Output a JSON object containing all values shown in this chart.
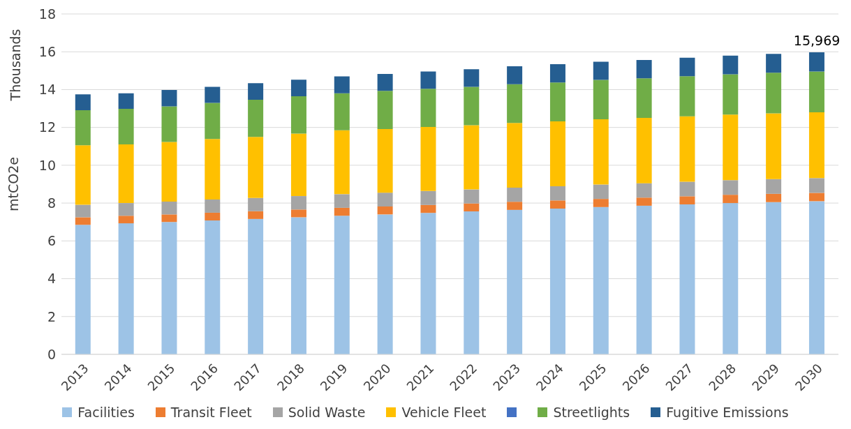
{
  "chart_data": {
    "type": "bar",
    "stacked": true,
    "ylabel": "mtCO2e",
    "annotations": [
      "Thousands",
      {
        "text": "15,969",
        "x": "2030",
        "y": 15.969
      }
    ],
    "categories": [
      "2013",
      "2014",
      "2015",
      "2016",
      "2017",
      "2018",
      "2019",
      "2020",
      "2021",
      "2022",
      "2023",
      "2024",
      "2025",
      "2026",
      "2027",
      "2028",
      "2029",
      "2030"
    ],
    "series": [
      {
        "name": "Facilities",
        "color": "#9dc3e6",
        "values": [
          6.85,
          6.93,
          7.0,
          7.08,
          7.16,
          7.25,
          7.33,
          7.4,
          7.48,
          7.56,
          7.64,
          7.71,
          7.79,
          7.86,
          7.93,
          8.0,
          8.05,
          8.1
        ]
      },
      {
        "name": "Transit Fleet",
        "color": "#ed7d31",
        "values": [
          0.4,
          0.4,
          0.4,
          0.41,
          0.41,
          0.41,
          0.42,
          0.42,
          0.42,
          0.42,
          0.43,
          0.43,
          0.43,
          0.43,
          0.43,
          0.44,
          0.44,
          0.44
        ]
      },
      {
        "name": "Solid Waste",
        "color": "#a5a5a5",
        "values": [
          0.66,
          0.67,
          0.68,
          0.7,
          0.7,
          0.71,
          0.72,
          0.73,
          0.74,
          0.74,
          0.75,
          0.75,
          0.76,
          0.76,
          0.77,
          0.77,
          0.78,
          0.78
        ]
      },
      {
        "name": "Vehicle Fleet",
        "color": "#ffc000",
        "values": [
          3.15,
          3.1,
          3.15,
          3.2,
          3.23,
          3.3,
          3.38,
          3.36,
          3.38,
          3.4,
          3.42,
          3.43,
          3.45,
          3.45,
          3.46,
          3.47,
          3.47,
          3.48
        ]
      },
      {
        "color": "#4472c4",
        "values": [
          0,
          0,
          0,
          0,
          0,
          0,
          0,
          0,
          0,
          0,
          0,
          0,
          0,
          0,
          0,
          0,
          0,
          0
        ]
      },
      {
        "name": "Streetlights",
        "color": "#70ad47",
        "values": [
          1.85,
          1.88,
          1.88,
          1.91,
          1.96,
          1.98,
          1.95,
          2.02,
          2.02,
          2.03,
          2.04,
          2.06,
          2.08,
          2.1,
          2.12,
          2.13,
          2.15,
          2.16
        ]
      },
      {
        "name": "Fugitive Emissions",
        "color": "#255e91",
        "values": [
          0.84,
          0.82,
          0.87,
          0.85,
          0.88,
          0.87,
          0.9,
          0.9,
          0.92,
          0.93,
          0.95,
          0.96,
          0.96,
          0.97,
          0.98,
          0.99,
          1.0,
          1.01
        ]
      }
    ],
    "ylim": [
      0,
      18
    ],
    "yticks": [
      0,
      2,
      4,
      6,
      8,
      10,
      12,
      14,
      16,
      18
    ],
    "grid": "y",
    "legend": "bottom"
  }
}
